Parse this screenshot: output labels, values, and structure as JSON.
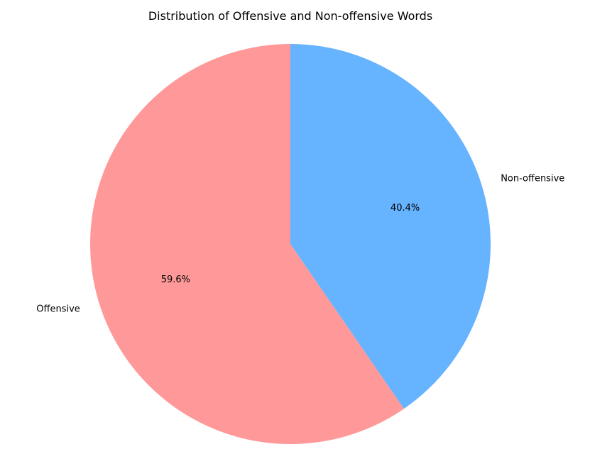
{
  "chart_data": {
    "type": "pie",
    "title": "Distribution of Offensive and Non-offensive Words",
    "slices": [
      {
        "label": "Offensive",
        "value": 59.6,
        "pct_label": "59.6%",
        "color": "#ff9999"
      },
      {
        "label": "Non-offensive",
        "value": 40.4,
        "pct_label": "40.4%",
        "color": "#66b3ff"
      }
    ],
    "start_angle_deg": 90,
    "direction": "counterclockwise",
    "legend": "none"
  }
}
